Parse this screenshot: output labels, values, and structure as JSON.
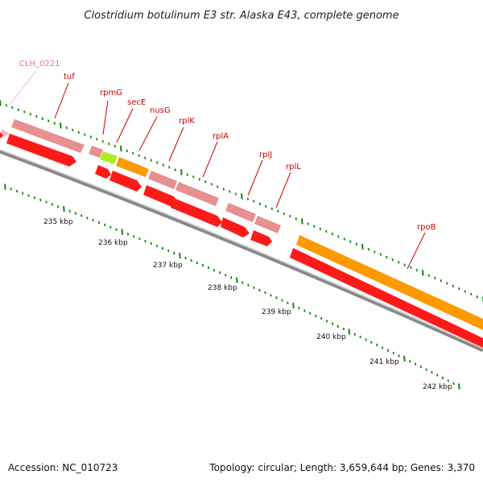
{
  "title": "Clostridium botulinum E3 str. Alaska E43, complete genome",
  "footer": {
    "accession": "Accession: NC_010723",
    "summary": "Topology: circular; Length: 3,659,644 bp; Genes: 3,370"
  },
  "colors": {
    "gene_label": "#cc0000",
    "gene_label_alt": "#e36fb0",
    "cds_red": "#ff1a1a",
    "cds_pink": "#e88f8f",
    "cds_orange": "#ff9900",
    "cds_lime": "#aaee22",
    "tick_green": "#118811",
    "backbone": "#888888"
  },
  "genes": [
    {
      "name": "CLH_0221",
      "color": "alt"
    },
    {
      "name": "tuf",
      "color": "red"
    },
    {
      "name": "rpmG",
      "color": "red"
    },
    {
      "name": "secE",
      "color": "red"
    },
    {
      "name": "nusG",
      "color": "red"
    },
    {
      "name": "rplK",
      "color": "red"
    },
    {
      "name": "rplA",
      "color": "red"
    },
    {
      "name": "rplJ",
      "color": "red"
    },
    {
      "name": "rplL",
      "color": "red"
    },
    {
      "name": "rpoB",
      "color": "red"
    }
  ],
  "ticks": [
    "235 kbp",
    "236 kbp",
    "237 kbp",
    "238 kbp",
    "239 kbp",
    "240 kbp",
    "241 kbp",
    "242 kbp"
  ]
}
